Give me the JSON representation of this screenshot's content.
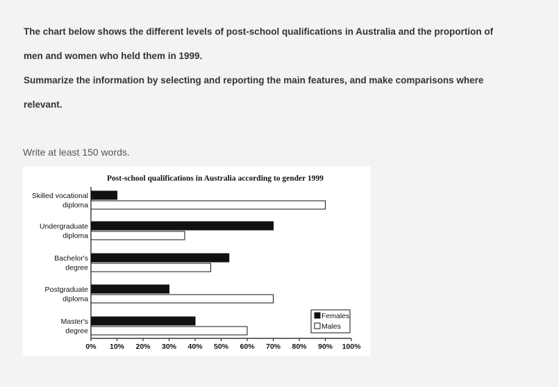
{
  "prompt": {
    "lines": [
      "The chart below shows the different levels of post-school qualifications in Australia and the proportion of",
      "men and women who held them in 1999.",
      "Summarize the information by selecting and reporting the main features, and make comparisons where",
      "relevant."
    ],
    "instruction": "Write at least 150 words."
  },
  "chart_data": {
    "type": "bar",
    "orientation": "horizontal",
    "title": "Post-school qualifications in Australia according to gender 1999",
    "categories": [
      [
        "Skilled vocational",
        "diploma"
      ],
      [
        "Undergraduate",
        "diploma"
      ],
      [
        "Bachelor's",
        "degree"
      ],
      [
        "Postgraduate",
        "diploma"
      ],
      [
        "Master's",
        "degree"
      ]
    ],
    "series": [
      {
        "name": "Females",
        "values": [
          10,
          70,
          53,
          30,
          40
        ],
        "color": "#111111"
      },
      {
        "name": "Males",
        "values": [
          90,
          36,
          46,
          70,
          60
        ],
        "color": "#ffffff"
      }
    ],
    "xlim": [
      0,
      100
    ],
    "xticks": [
      "0%",
      "10%",
      "20%",
      "30%",
      "40%",
      "50%",
      "60%",
      "70%",
      "80%",
      "90%",
      "100%"
    ],
    "grid": false,
    "legend": "bottom-right"
  }
}
